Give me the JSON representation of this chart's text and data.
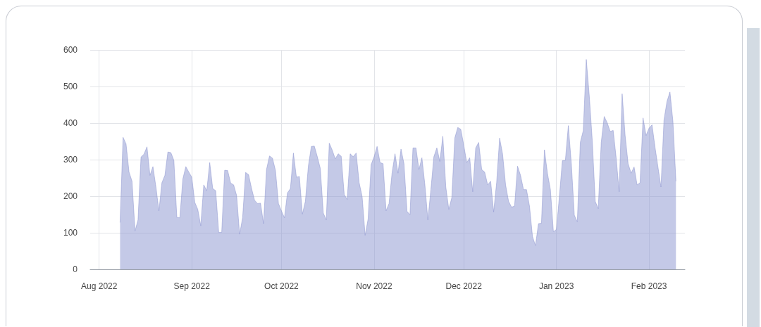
{
  "chart_data": {
    "type": "area",
    "grid": true,
    "marker": "none",
    "xlim": [
      "2022-07-29",
      "2023-02-13"
    ],
    "xticks": [
      {
        "value": "2022-08-01",
        "label": "Aug 2022"
      },
      {
        "value": "2022-09-01",
        "label": "Sep 2022"
      },
      {
        "value": "2022-10-01",
        "label": "Oct 2022"
      },
      {
        "value": "2022-11-01",
        "label": "Nov 2022"
      },
      {
        "value": "2022-12-01",
        "label": "Dec 2022"
      },
      {
        "value": "2023-01-01",
        "label": "Jan 2023"
      },
      {
        "value": "2023-02-01",
        "label": "Feb 2023"
      }
    ],
    "ylim": [
      0,
      600
    ],
    "yticks": [
      0,
      100,
      200,
      300,
      400,
      500,
      600
    ],
    "x": [
      "2022-08-08",
      "2022-08-09",
      "2022-08-10",
      "2022-08-11",
      "2022-08-12",
      "2022-08-13",
      "2022-08-14",
      "2022-08-15",
      "2022-08-16",
      "2022-08-17",
      "2022-08-18",
      "2022-08-19",
      "2022-08-20",
      "2022-08-21",
      "2022-08-22",
      "2022-08-23",
      "2022-08-24",
      "2022-08-25",
      "2022-08-26",
      "2022-08-27",
      "2022-08-28",
      "2022-08-29",
      "2022-08-30",
      "2022-08-31",
      "2022-09-01",
      "2022-09-02",
      "2022-09-03",
      "2022-09-04",
      "2022-09-05",
      "2022-09-06",
      "2022-09-07",
      "2022-09-08",
      "2022-09-09",
      "2022-09-10",
      "2022-09-11",
      "2022-09-12",
      "2022-09-13",
      "2022-09-14",
      "2022-09-15",
      "2022-09-16",
      "2022-09-17",
      "2022-09-18",
      "2022-09-19",
      "2022-09-20",
      "2022-09-21",
      "2022-09-22",
      "2022-09-23",
      "2022-09-24",
      "2022-09-25",
      "2022-09-26",
      "2022-09-27",
      "2022-09-28",
      "2022-09-29",
      "2022-09-30",
      "2022-10-01",
      "2022-10-02",
      "2022-10-03",
      "2022-10-04",
      "2022-10-05",
      "2022-10-06",
      "2022-10-07",
      "2022-10-08",
      "2022-10-09",
      "2022-10-10",
      "2022-10-11",
      "2022-10-12",
      "2022-10-13",
      "2022-10-14",
      "2022-10-15",
      "2022-10-16",
      "2022-10-17",
      "2022-10-18",
      "2022-10-19",
      "2022-10-20",
      "2022-10-21",
      "2022-10-22",
      "2022-10-23",
      "2022-10-24",
      "2022-10-25",
      "2022-10-26",
      "2022-10-27",
      "2022-10-28",
      "2022-10-29",
      "2022-10-30",
      "2022-10-31",
      "2022-11-01",
      "2022-11-02",
      "2022-11-03",
      "2022-11-04",
      "2022-11-05",
      "2022-11-06",
      "2022-11-07",
      "2022-11-08",
      "2022-11-09",
      "2022-11-10",
      "2022-11-11",
      "2022-11-12",
      "2022-11-13",
      "2022-11-14",
      "2022-11-15",
      "2022-11-16",
      "2022-11-17",
      "2022-11-18",
      "2022-11-19",
      "2022-11-20",
      "2022-11-21",
      "2022-11-22",
      "2022-11-23",
      "2022-11-24",
      "2022-11-25",
      "2022-11-26",
      "2022-11-27",
      "2022-11-28",
      "2022-11-29",
      "2022-11-30",
      "2022-12-01",
      "2022-12-02",
      "2022-12-03",
      "2022-12-04",
      "2022-12-05",
      "2022-12-06",
      "2022-12-07",
      "2022-12-08",
      "2022-12-09",
      "2022-12-10",
      "2022-12-11",
      "2022-12-12",
      "2022-12-13",
      "2022-12-14",
      "2022-12-15",
      "2022-12-16",
      "2022-12-17",
      "2022-12-18",
      "2022-12-19",
      "2022-12-20",
      "2022-12-21",
      "2022-12-22",
      "2022-12-23",
      "2022-12-24",
      "2022-12-25",
      "2022-12-26",
      "2022-12-27",
      "2022-12-28",
      "2022-12-29",
      "2022-12-30",
      "2022-12-31",
      "2023-01-01",
      "2023-01-02",
      "2023-01-03",
      "2023-01-04",
      "2023-01-05",
      "2023-01-06",
      "2023-01-07",
      "2023-01-08",
      "2023-01-09",
      "2023-01-10",
      "2023-01-11",
      "2023-01-12",
      "2023-01-13",
      "2023-01-14",
      "2023-01-15",
      "2023-01-16",
      "2023-01-17",
      "2023-01-18",
      "2023-01-19",
      "2023-01-20",
      "2023-01-21",
      "2023-01-22",
      "2023-01-23",
      "2023-01-24",
      "2023-01-25",
      "2023-01-26",
      "2023-01-27",
      "2023-01-28",
      "2023-01-29",
      "2023-01-30",
      "2023-01-31",
      "2023-02-01",
      "2023-02-02",
      "2023-02-03",
      "2023-02-04",
      "2023-02-05",
      "2023-02-06",
      "2023-02-07",
      "2023-02-08",
      "2023-02-09",
      "2023-02-10"
    ],
    "series": [
      {
        "color": "#8a93cf",
        "values": [
          128,
          361,
          343,
          266,
          241,
          105,
          135,
          307,
          315,
          335,
          257,
          281,
          225,
          160,
          237,
          257,
          321,
          319,
          298,
          142,
          141,
          247,
          281,
          266,
          252,
          183,
          164,
          119,
          231,
          215,
          292,
          221,
          215,
          101,
          101,
          271,
          270,
          236,
          231,
          202,
          96,
          141,
          265,
          259,
          221,
          189,
          180,
          181,
          125,
          273,
          310,
          304,
          270,
          180,
          160,
          141,
          209,
          221,
          318,
          252,
          254,
          151,
          186,
          282,
          336,
          337,
          308,
          276,
          154,
          135,
          345,
          326,
          302,
          316,
          309,
          205,
          191,
          316,
          308,
          318,
          237,
          199,
          93,
          138,
          286,
          308,
          336,
          292,
          289,
          160,
          180,
          263,
          316,
          263,
          329,
          289,
          159,
          149,
          332,
          332,
          273,
          305,
          231,
          135,
          218,
          308,
          332,
          295,
          364,
          225,
          164,
          196,
          359,
          388,
          383,
          340,
          292,
          305,
          212,
          332,
          347,
          273,
          266,
          231,
          241,
          157,
          237,
          359,
          315,
          231,
          186,
          170,
          173,
          282,
          257,
          218,
          218,
          173,
          90,
          65,
          125,
          126,
          327,
          263,
          218,
          103,
          109,
          199,
          297,
          298,
          393,
          289,
          148,
          130,
          347,
          380,
          574,
          475,
          353,
          186,
          166,
          347,
          418,
          401,
          377,
          380,
          305,
          212,
          480,
          366,
          289,
          263,
          280,
          231,
          237,
          414,
          366,
          386,
          395,
          334,
          279,
          225,
          408,
          459,
          485,
          404,
          241
        ]
      }
    ]
  }
}
